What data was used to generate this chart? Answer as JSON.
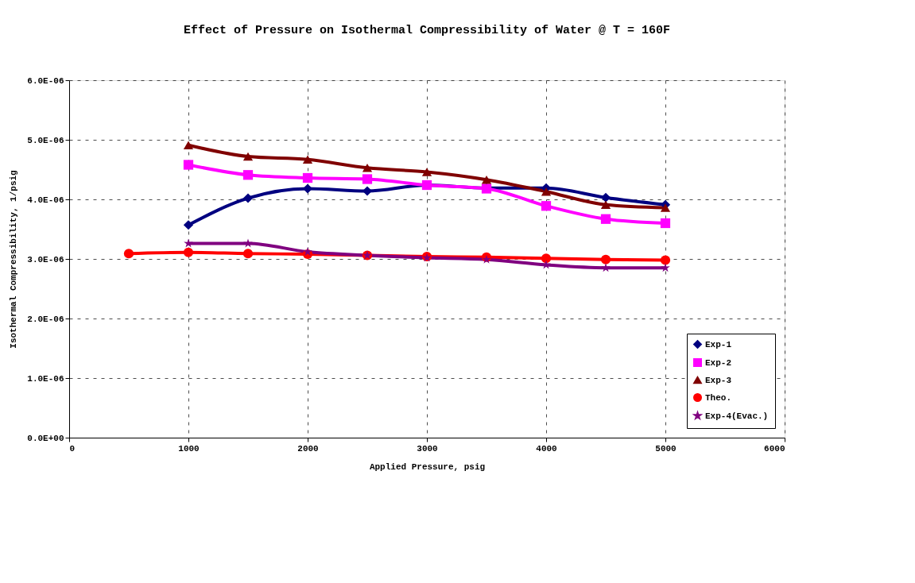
{
  "chart_data": {
    "type": "line",
    "title": "Effect of Pressure on Isothermal Compressibility of Water @ T = 160F",
    "xlabel": "Applied Pressure, psig",
    "ylabel": "Isothermal Compressibility, 1/psig",
    "xlim": [
      0,
      6000
    ],
    "xticks": [
      0,
      1000,
      2000,
      3000,
      4000,
      5000,
      6000
    ],
    "ylim": [
      0,
      6e-06
    ],
    "yticks": [
      {
        "value": 0,
        "label": "0.0E+00"
      },
      {
        "value": 1e-06,
        "label": "1.0E-06"
      },
      {
        "value": 2e-06,
        "label": "2.0E-06"
      },
      {
        "value": 3e-06,
        "label": "3.0E-06"
      },
      {
        "value": 4e-06,
        "label": "4.0E-06"
      },
      {
        "value": 5e-06,
        "label": "5.0E-06"
      },
      {
        "value": 6e-06,
        "label": "6.0E-06"
      }
    ],
    "grid": true,
    "legend": "bottom right",
    "line_style": "solid",
    "series": [
      {
        "name": "Exp-1",
        "color": "#000080",
        "marker": "diamond",
        "x": [
          1000,
          1500,
          2000,
          2500,
          3000,
          3500,
          4000,
          4500,
          5000
        ],
        "values": [
          3.57e-06,
          4.02e-06,
          4.18e-06,
          4.14e-06,
          4.24e-06,
          4.19e-06,
          4.19e-06,
          4.03e-06,
          3.91e-06
        ]
      },
      {
        "name": "Exp-2",
        "color": "#ff00ff",
        "marker": "square",
        "x": [
          1000,
          1500,
          2000,
          2500,
          3000,
          3500,
          4000,
          4500,
          5000
        ],
        "values": [
          4.58e-06,
          4.41e-06,
          4.36e-06,
          4.34e-06,
          4.24e-06,
          4.18e-06,
          3.89e-06,
          3.67e-06,
          3.6e-06
        ]
      },
      {
        "name": "Exp-3",
        "color": "#800000",
        "marker": "triangle",
        "x": [
          1000,
          1500,
          2000,
          2500,
          3000,
          3500,
          4000,
          4500,
          5000
        ],
        "values": [
          4.91e-06,
          4.72e-06,
          4.67e-06,
          4.53e-06,
          4.46e-06,
          4.33e-06,
          4.13e-06,
          3.91e-06,
          3.86e-06
        ]
      },
      {
        "name": "Theo.",
        "color": "#ff0000",
        "marker": "circle",
        "x": [
          500,
          1000,
          1500,
          2000,
          2500,
          3000,
          3500,
          4000,
          4500,
          5000
        ],
        "values": [
          3.09e-06,
          3.11e-06,
          3.09e-06,
          3.08e-06,
          3.06e-06,
          3.04e-06,
          3.03e-06,
          3.01e-06,
          2.99e-06,
          2.98e-06
        ]
      },
      {
        "name": "Exp-4(Evac.)",
        "color": "#800080",
        "marker": "star",
        "x": [
          1000,
          1500,
          2000,
          2500,
          3000,
          3500,
          4000,
          4500,
          5000
        ],
        "values": [
          3.26e-06,
          3.26e-06,
          3.12e-06,
          3.06e-06,
          3.02e-06,
          2.99e-06,
          2.9e-06,
          2.85e-06,
          2.85e-06
        ]
      }
    ]
  }
}
